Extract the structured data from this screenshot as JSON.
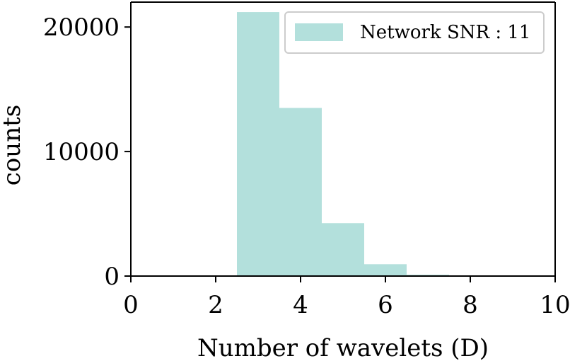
{
  "chart_data": {
    "type": "bar",
    "histogram": true,
    "bin_edges": [
      2.5,
      3.5,
      4.5,
      5.5,
      6.5,
      7.5
    ],
    "series": [
      {
        "name": "Network SNR : 11",
        "color": "#b3e0dc",
        "values": [
          21200,
          13500,
          4250,
          950,
          110
        ]
      }
    ],
    "xlabel": "Number of wavelets (D)",
    "ylabel": "counts",
    "xlim": [
      0,
      10
    ],
    "ylim": [
      0,
      22000
    ],
    "xticks": [
      0,
      2,
      4,
      6,
      8,
      10
    ],
    "yticks": [
      0,
      10000,
      20000
    ],
    "grid": false,
    "legend_position": "top-right"
  }
}
